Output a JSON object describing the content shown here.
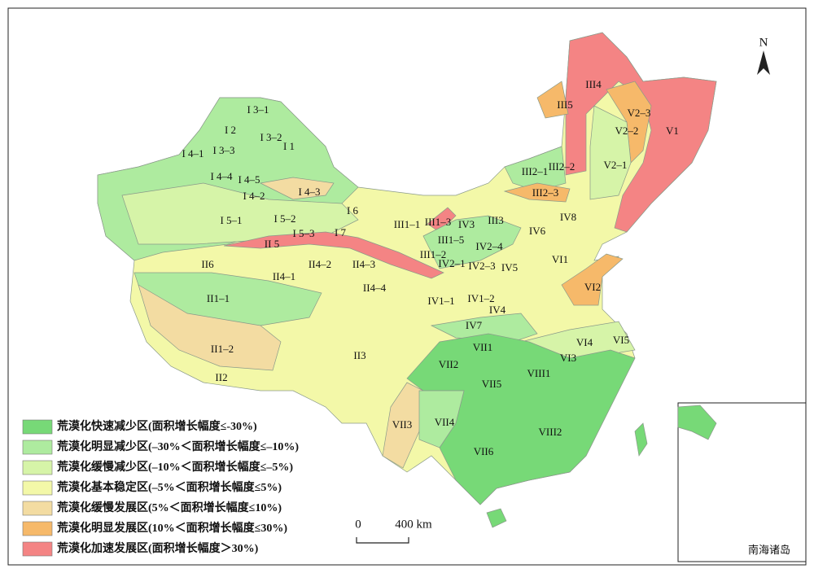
{
  "map_labels": [
    "I 3–1",
    "I 2",
    "I 3–2",
    "I 1",
    "I 3–3",
    "I 4–1",
    "I 4–4",
    "I 4–5",
    "I 4–2",
    "I 4–3",
    "I 5–1",
    "I 5–2",
    "I 5–3",
    "I 6",
    "I 7",
    "II 5",
    "II6",
    "II4–2",
    "II4–3",
    "II4–1",
    "II4–4",
    "II1–1",
    "II1–2",
    "II2",
    "II3",
    "III1–1",
    "III1–3",
    "III1–5",
    "III1–2",
    "III2–1",
    "III2–2",
    "III2–3",
    "III3",
    "III4",
    "III5",
    "IV3",
    "IV2–4",
    "IV2–1",
    "IV2–3",
    "IV5",
    "IV6",
    "IV8",
    "IV1–1",
    "IV1–2",
    "IV4",
    "IV7",
    "V1",
    "V2–1",
    "V2–2",
    "V2–3",
    "VI1",
    "VI2",
    "VI3",
    "VI4",
    "VI5",
    "VII1",
    "VII2",
    "VII3",
    "VII4",
    "VII5",
    "VII6",
    "VIII1",
    "VIII2"
  ],
  "legend": [
    {
      "text": "荒漠化快速减少区(面积增长幅度≤-30%)",
      "color": "#77d977"
    },
    {
      "text": "荒漠化明显减少区(–30%＜面积增长幅度≤–10%)",
      "color": "#aeeb9f"
    },
    {
      "text": "荒漠化缓慢减少区(–10%＜面积增长幅度≤–5%)",
      "color": "#d6f4a8"
    },
    {
      "text": "荒漠化基本稳定区(–5%＜面积增长幅度≤5%)",
      "color": "#f3f8a8"
    },
    {
      "text": "荒漠化缓慢发展区(5%＜面积增长幅度≤10%)",
      "color": "#f3dca2"
    },
    {
      "text": "荒漠化明显发展区(10%＜面积增长幅度≤30%)",
      "color": "#f6b96a"
    },
    {
      "text": "荒漠化加速发展区(面积增长幅度＞30%)",
      "color": "#f48484"
    }
  ],
  "scale_bar": {
    "start": "0",
    "end": "400 km"
  },
  "north": "N",
  "inset_label": "南海诸岛"
}
